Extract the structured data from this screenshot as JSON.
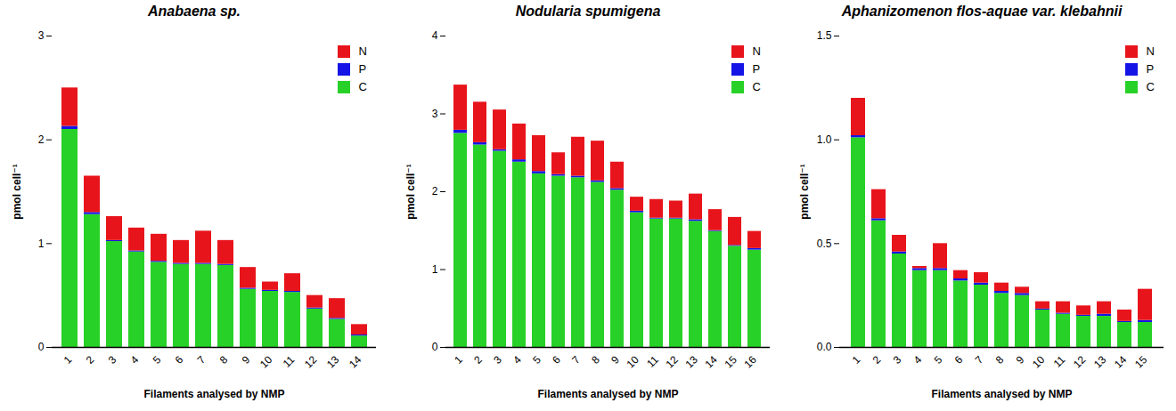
{
  "chart_data": [
    {
      "type": "bar",
      "stacked": true,
      "legend": "upper right",
      "title": "Anabaena sp.",
      "x_label": "Filaments analysed by NMP",
      "y_label": "pmol cell⁻¹",
      "categories": [
        "1",
        "2",
        "3",
        "4",
        "5",
        "6",
        "7",
        "8",
        "9",
        "10",
        "11",
        "12",
        "13",
        "14"
      ],
      "series": [
        {
          "name": "C",
          "color": "#27d127",
          "values": [
            2.1,
            1.28,
            1.02,
            0.92,
            0.82,
            0.8,
            0.8,
            0.79,
            0.56,
            0.54,
            0.53,
            0.37,
            0.27,
            0.11
          ]
        },
        {
          "name": "P",
          "color": "#1414e6",
          "values": [
            0.03,
            0.02,
            0.01,
            0.01,
            0.01,
            0.01,
            0.01,
            0.01,
            0.01,
            0.01,
            0.01,
            0.01,
            0.01,
            0.01
          ]
        },
        {
          "name": "N",
          "color": "#e8141b",
          "values": [
            0.37,
            0.35,
            0.23,
            0.22,
            0.26,
            0.22,
            0.31,
            0.23,
            0.2,
            0.08,
            0.17,
            0.12,
            0.19,
            0.1
          ]
        }
      ],
      "ylim": [
        0,
        3
      ],
      "yticks": [
        0,
        1,
        2,
        3
      ]
    },
    {
      "type": "bar",
      "stacked": true,
      "legend": "upper right",
      "title": "Nodularia spumigena",
      "x_label": "Filaments analysed by NMP",
      "y_label": "pmol cell⁻¹",
      "categories": [
        "1",
        "2",
        "3",
        "4",
        "5",
        "6",
        "7",
        "8",
        "9",
        "10",
        "11",
        "12",
        "13",
        "14",
        "15",
        "16"
      ],
      "series": [
        {
          "name": "C",
          "color": "#27d127",
          "values": [
            2.75,
            2.6,
            2.52,
            2.38,
            2.23,
            2.2,
            2.18,
            2.12,
            2.02,
            1.73,
            1.65,
            1.65,
            1.62,
            1.49,
            1.3,
            1.25
          ]
        },
        {
          "name": "P",
          "color": "#1414e6",
          "values": [
            0.04,
            0.03,
            0.02,
            0.03,
            0.03,
            0.02,
            0.02,
            0.02,
            0.02,
            0.02,
            0.01,
            0.01,
            0.02,
            0.01,
            0.01,
            0.02
          ]
        },
        {
          "name": "N",
          "color": "#e8141b",
          "values": [
            0.58,
            0.52,
            0.51,
            0.46,
            0.46,
            0.28,
            0.5,
            0.51,
            0.34,
            0.18,
            0.24,
            0.22,
            0.33,
            0.27,
            0.36,
            0.22
          ]
        }
      ],
      "ylim": [
        0,
        4
      ],
      "yticks": [
        0,
        1,
        2,
        3,
        4
      ]
    },
    {
      "type": "bar",
      "stacked": true,
      "legend": "upper right",
      "title": "Aphanizomenon flos-aquae var. klebahnii",
      "x_label": "Filaments analysed by NMP",
      "y_label": "pmol cell⁻¹",
      "categories": [
        "1",
        "2",
        "3",
        "4",
        "5",
        "6",
        "7",
        "8",
        "9",
        "10",
        "11",
        "12",
        "13",
        "14",
        "15"
      ],
      "series": [
        {
          "name": "C",
          "color": "#27d127",
          "values": [
            1.01,
            0.61,
            0.45,
            0.37,
            0.37,
            0.32,
            0.3,
            0.26,
            0.25,
            0.18,
            0.16,
            0.15,
            0.15,
            0.12,
            0.12
          ]
        },
        {
          "name": "P",
          "color": "#1414e6",
          "values": [
            0.01,
            0.01,
            0.01,
            0.01,
            0.01,
            0.01,
            0.01,
            0.01,
            0.01,
            0.005,
            0.005,
            0.005,
            0.01,
            0.005,
            0.01
          ]
        },
        {
          "name": "N",
          "color": "#e8141b",
          "values": [
            0.18,
            0.14,
            0.08,
            0.01,
            0.12,
            0.04,
            0.05,
            0.04,
            0.03,
            0.035,
            0.055,
            0.045,
            0.06,
            0.055,
            0.15
          ]
        }
      ],
      "ylim": [
        0,
        1.5
      ],
      "yticks": [
        {
          "value": 0,
          "label": "0.0"
        },
        {
          "value": 0.5,
          "label": "0.5"
        },
        {
          "value": 1,
          "label": "1.0"
        },
        {
          "value": 1.5,
          "label": "1.5"
        }
      ]
    }
  ]
}
